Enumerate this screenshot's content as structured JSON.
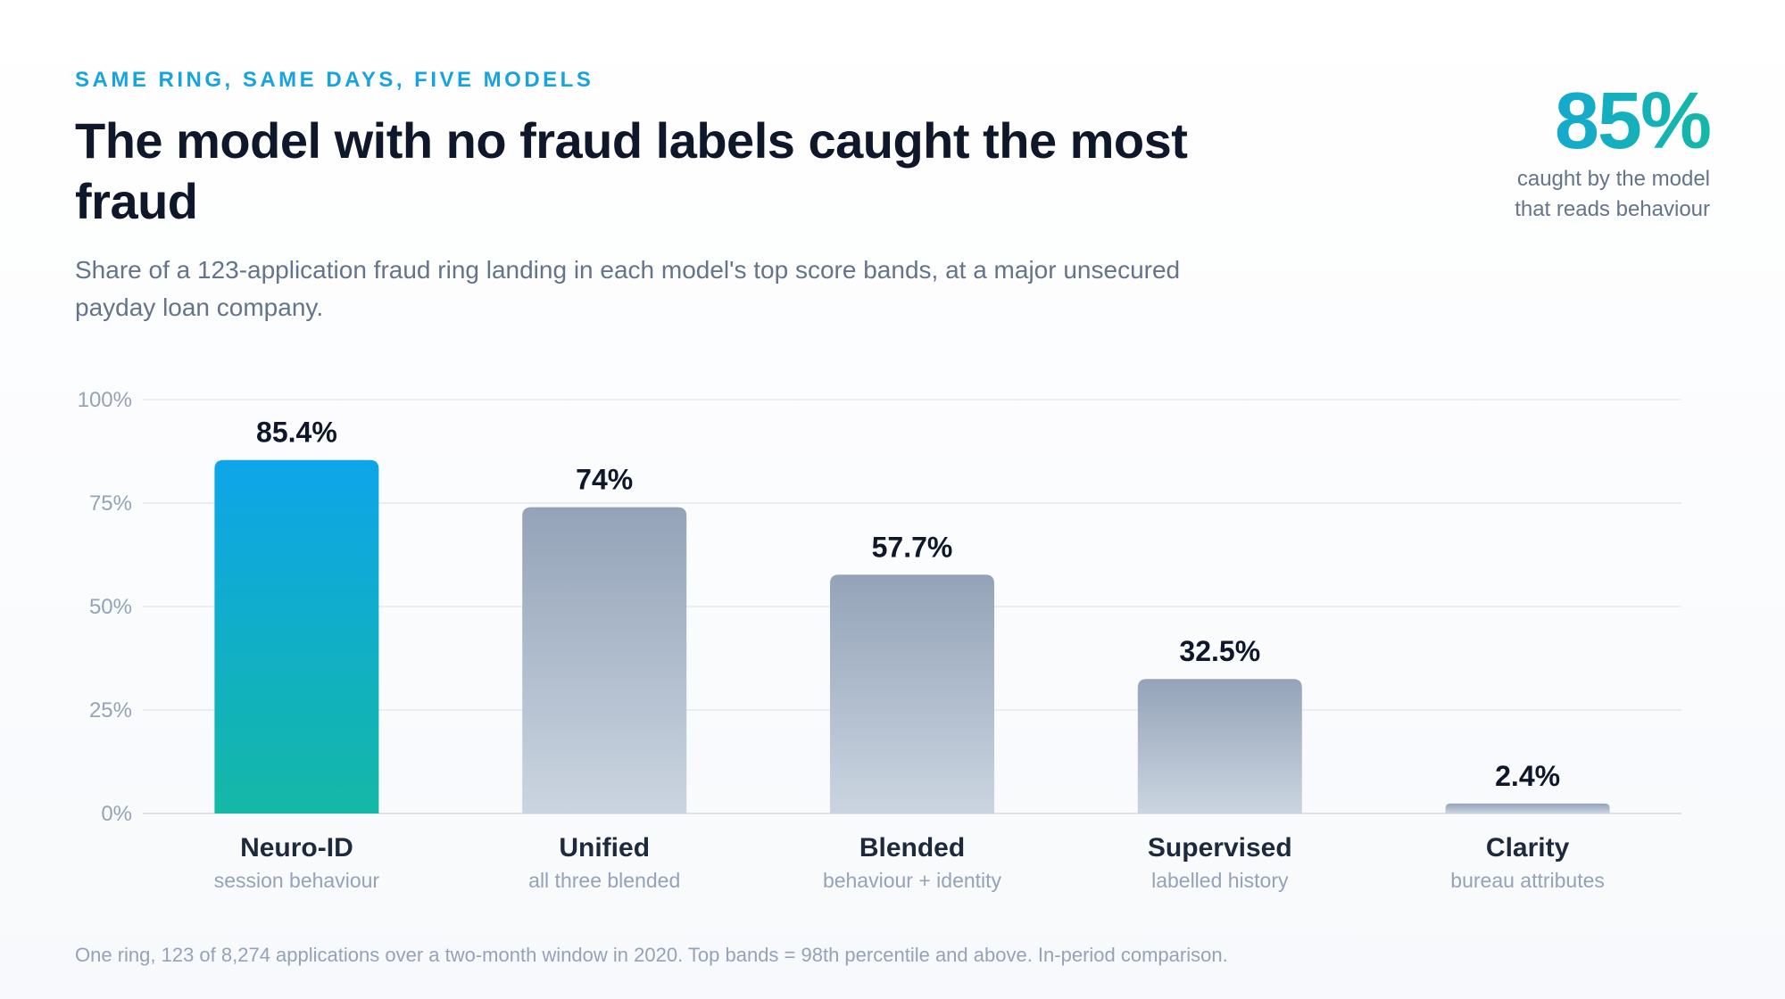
{
  "header": {
    "eyebrow": "SAME RING, SAME DAYS, FIVE MODELS",
    "title": "The model with no fraud labels caught the most fraud",
    "subtitle": "Share of a 123-application fraud ring landing in each model's top score bands, at a major unsecured payday loan company."
  },
  "stat": {
    "value": "85%",
    "caption": "caught by the model that reads behaviour"
  },
  "footnote": "One ring, 123 of 8,274 applications over a two-month window in 2020. Top bands = 98th percentile and above. In-period comparison.",
  "colors": {
    "highlight_top": "#0ea5e9",
    "highlight_bottom": "#14b8a6",
    "muted_top": "#94a3b8",
    "muted_bottom": "#cbd5e1",
    "grid": "#e5e9f0",
    "tick": "#94a3b8"
  },
  "chart_data": {
    "type": "bar",
    "categories": [
      "Neuro-ID",
      "Unified",
      "Blended",
      "Supervised",
      "Clarity"
    ],
    "sublabels": [
      "session behaviour",
      "all three blended",
      "behaviour + identity",
      "labelled history",
      "bureau attributes"
    ],
    "values": [
      85.4,
      74,
      57.7,
      32.5,
      2.4
    ],
    "value_labels": [
      "85.4%",
      "74%",
      "57.7%",
      "32.5%",
      "2.4%"
    ],
    "highlight_index": 0,
    "yticks": [
      0,
      25,
      50,
      75,
      100
    ],
    "ytick_labels": [
      "0%",
      "25%",
      "50%",
      "75%",
      "100%"
    ],
    "ylim": [
      0,
      100
    ],
    "grid": true
  }
}
